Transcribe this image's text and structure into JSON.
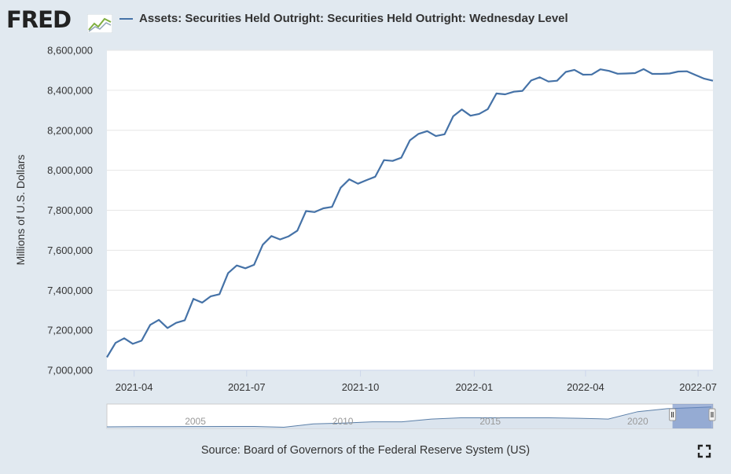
{
  "logo": {
    "text": "FRED"
  },
  "legend": {
    "label": "Assets: Securities Held Outright: Securities Held Outright: Wednesday Level",
    "color": "#4572a7"
  },
  "source_text": "Source: Board of Governors of the Federal Reserve System (US)",
  "navigator_labels": [
    "2005",
    "2010",
    "2015",
    "2020"
  ],
  "colors": {
    "line": "#4572a7",
    "plot_background": "#ffffff",
    "page_background": "#e1e9f0",
    "grid": "#e6e6e6"
  },
  "chart_data": {
    "type": "line",
    "ylabel": "Millions of U.S. Dollars",
    "ylim": [
      7000000,
      8600000
    ],
    "y_ticks": [
      "7,000,000",
      "7,200,000",
      "7,400,000",
      "7,600,000",
      "7,800,000",
      "8,000,000",
      "8,200,000",
      "8,400,000",
      "8,600,000"
    ],
    "x_ticks": [
      "2021-04",
      "2021-07",
      "2021-10",
      "2022-01",
      "2022-04",
      "2022-07"
    ],
    "grid": true,
    "series": [
      {
        "name": "Assets: Securities Held Outright: Securities Held Outright: Wednesday Level",
        "x": [
          "2021-03-10",
          "2021-03-17",
          "2021-03-24",
          "2021-03-31",
          "2021-04-07",
          "2021-04-14",
          "2021-04-21",
          "2021-04-28",
          "2021-05-05",
          "2021-05-12",
          "2021-05-19",
          "2021-05-26",
          "2021-06-02",
          "2021-06-09",
          "2021-06-16",
          "2021-06-23",
          "2021-06-30",
          "2021-07-07",
          "2021-07-14",
          "2021-07-21",
          "2021-07-28",
          "2021-08-04",
          "2021-08-11",
          "2021-08-18",
          "2021-08-25",
          "2021-09-01",
          "2021-09-08",
          "2021-09-15",
          "2021-09-22",
          "2021-09-29",
          "2021-10-06",
          "2021-10-13",
          "2021-10-20",
          "2021-10-27",
          "2021-11-03",
          "2021-11-10",
          "2021-11-17",
          "2021-11-24",
          "2021-12-01",
          "2021-12-08",
          "2021-12-15",
          "2021-12-22",
          "2021-12-29",
          "2022-01-05",
          "2022-01-12",
          "2022-01-19",
          "2022-01-26",
          "2022-02-02",
          "2022-02-09",
          "2022-02-16",
          "2022-02-23",
          "2022-03-02",
          "2022-03-09",
          "2022-03-16",
          "2022-03-23",
          "2022-03-30",
          "2022-04-06",
          "2022-04-13",
          "2022-04-20",
          "2022-04-27",
          "2022-05-04",
          "2022-05-11",
          "2022-05-18",
          "2022-05-25",
          "2022-06-01",
          "2022-06-08",
          "2022-06-15",
          "2022-06-22",
          "2022-06-29",
          "2022-07-06",
          "2022-07-13"
        ],
        "values": [
          7065000,
          7137000,
          7160000,
          7132000,
          7148000,
          7227000,
          7252000,
          7211000,
          7237000,
          7250000,
          7357000,
          7338000,
          7370000,
          7380000,
          7486000,
          7524000,
          7510000,
          7527000,
          7628000,
          7671000,
          7654000,
          7670000,
          7698000,
          7796000,
          7791000,
          7810000,
          7817000,
          7913000,
          7955000,
          7933000,
          7951000,
          7968000,
          8051000,
          8047000,
          8063000,
          8150000,
          8182000,
          8196000,
          8171000,
          8180000,
          8270000,
          8304000,
          8273000,
          8282000,
          8306000,
          8384000,
          8380000,
          8393000,
          8397000,
          8449000,
          8465000,
          8444000,
          8448000,
          8492000,
          8502000,
          8478000,
          8479000,
          8505000,
          8497000,
          8483000,
          8484000,
          8486000,
          8506000,
          8482000,
          8482000,
          8484000,
          8494000,
          8495000,
          8476000,
          8458000,
          8448000
        ]
      }
    ],
    "navigator": {
      "x_years": [
        2002,
        2003,
        2004,
        2005,
        2006,
        2007,
        2008,
        2009,
        2010,
        2011,
        2012,
        2013,
        2014,
        2015,
        2016,
        2017,
        2018,
        2019,
        2020,
        2021,
        2022
      ],
      "values": [
        620000,
        680000,
        720000,
        760000,
        780000,
        790000,
        480000,
        1800000,
        2100000,
        2600000,
        2600000,
        3700000,
        4200000,
        4200000,
        4200000,
        4200000,
        4000000,
        3700000,
        6600000,
        7800000,
        8450000
      ]
    }
  }
}
